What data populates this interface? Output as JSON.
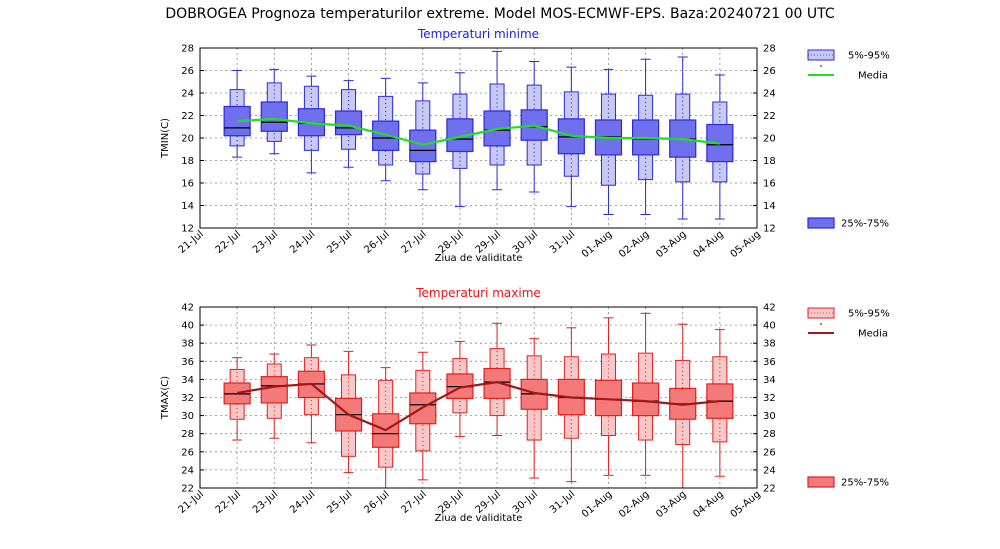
{
  "title": "DOBROGEA  Prognoza temperaturilor extreme.  Model MOS-ECMWF-EPS. Baza:20240721 00 UTC",
  "chart_data": [
    {
      "type": "box",
      "title": "Temperaturi minime",
      "title_color": "#1a1aff",
      "ylabel": "TMIN(C)",
      "xlabel": "Ziua de validitate",
      "ylim": [
        12,
        28
      ],
      "yticks": [
        12,
        14,
        16,
        18,
        20,
        22,
        24,
        26,
        28
      ],
      "x_ticks": [
        "21-Jul",
        "22-Jul",
        "23-Jul",
        "24-Jul",
        "25-Jul",
        "26-Jul",
        "27-Jul",
        "28-Jul",
        "29-Jul",
        "30-Jul",
        "31-Jul",
        "01-Aug",
        "02-Aug",
        "03-Aug",
        "04-Aug",
        "05-Aug"
      ],
      "grid": true,
      "colors": {
        "outer_fill": "#c8c8f4",
        "inner_fill": "#7070ee",
        "stroke": "#2a2ad8",
        "mean_line": "#22dd22"
      },
      "legend": {
        "outer_label": "5%-95%",
        "mean_label": "Media",
        "inner_label": "25%-75%"
      },
      "boxes": [
        {
          "day": "22-Jul",
          "p5": 19.3,
          "p25": 20.2,
          "median": 20.9,
          "p75": 22.8,
          "p95": 24.3,
          "min": 18.3,
          "max": 26.0,
          "mean": 21.5
        },
        {
          "day": "23-Jul",
          "p5": 19.7,
          "p25": 20.6,
          "median": 21.4,
          "p75": 23.2,
          "p95": 24.9,
          "min": 18.6,
          "max": 26.1,
          "mean": 21.7
        },
        {
          "day": "24-Jul",
          "p5": 18.9,
          "p25": 20.2,
          "median": 21.3,
          "p75": 22.6,
          "p95": 24.6,
          "min": 16.9,
          "max": 25.5,
          "mean": 21.3
        },
        {
          "day": "25-Jul",
          "p5": 19.0,
          "p25": 20.3,
          "median": 20.9,
          "p75": 22.4,
          "p95": 24.3,
          "min": 17.4,
          "max": 25.1,
          "mean": 21.1
        },
        {
          "day": "26-Jul",
          "p5": 17.6,
          "p25": 18.9,
          "median": 20.0,
          "p75": 21.5,
          "p95": 23.7,
          "min": 16.2,
          "max": 25.3,
          "mean": 20.3
        },
        {
          "day": "27-Jul",
          "p5": 16.8,
          "p25": 17.9,
          "median": 18.9,
          "p75": 20.7,
          "p95": 23.3,
          "min": 15.4,
          "max": 24.9,
          "mean": 19.4
        },
        {
          "day": "28-Jul",
          "p5": 17.3,
          "p25": 18.8,
          "median": 19.9,
          "p75": 21.7,
          "p95": 23.9,
          "min": 13.9,
          "max": 25.8,
          "mean": 20.1
        },
        {
          "day": "29-Jul",
          "p5": 17.6,
          "p25": 19.3,
          "median": 20.7,
          "p75": 22.4,
          "p95": 24.8,
          "min": 15.4,
          "max": 27.7,
          "mean": 20.8
        },
        {
          "day": "30-Jul",
          "p5": 17.6,
          "p25": 19.8,
          "median": 21.0,
          "p75": 22.5,
          "p95": 24.7,
          "min": 15.2,
          "max": 26.8,
          "mean": 21.1
        },
        {
          "day": "31-Jul",
          "p5": 16.6,
          "p25": 18.6,
          "median": 20.1,
          "p75": 21.7,
          "p95": 24.1,
          "min": 13.9,
          "max": 26.3,
          "mean": 20.2
        },
        {
          "day": "01-Aug",
          "p5": 15.8,
          "p25": 18.5,
          "median": 20.1,
          "p75": 21.6,
          "p95": 23.9,
          "min": 13.2,
          "max": 26.1,
          "mean": 20.0
        },
        {
          "day": "02-Aug",
          "p5": 16.3,
          "p25": 18.5,
          "median": 19.9,
          "p75": 21.6,
          "p95": 23.8,
          "min": 13.2,
          "max": 27.0,
          "mean": 20.0
        },
        {
          "day": "03-Aug",
          "p5": 16.1,
          "p25": 18.3,
          "median": 19.9,
          "p75": 21.6,
          "p95": 23.9,
          "min": 12.8,
          "max": 27.2,
          "mean": 19.9
        },
        {
          "day": "04-Aug",
          "p5": 16.1,
          "p25": 17.9,
          "median": 19.4,
          "p75": 21.2,
          "p95": 23.2,
          "min": 12.8,
          "max": 25.6,
          "mean": 19.5
        }
      ]
    },
    {
      "type": "box",
      "title": "Temperaturi maxime",
      "title_color": "#ee1111",
      "ylabel": "TMAX(C)",
      "xlabel": "Ziua de validitate",
      "ylim": [
        22,
        42
      ],
      "yticks": [
        22,
        24,
        26,
        28,
        30,
        32,
        34,
        36,
        38,
        40,
        42
      ],
      "x_ticks": [
        "21-Jul",
        "22-Jul",
        "23-Jul",
        "24-Jul",
        "25-Jul",
        "26-Jul",
        "27-Jul",
        "28-Jul",
        "29-Jul",
        "30-Jul",
        "31-Jul",
        "01-Aug",
        "02-Aug",
        "03-Aug",
        "04-Aug",
        "05-Aug"
      ],
      "grid": true,
      "colors": {
        "outer_fill": "#f8c8c8",
        "inner_fill": "#f47a7a",
        "stroke": "#e02020",
        "mean_line": "#a01818"
      },
      "legend": {
        "outer_label": "5%-95%",
        "mean_label": "Media",
        "inner_label": "25%-75%"
      },
      "boxes": [
        {
          "day": "22-Jul",
          "p5": 29.6,
          "p25": 31.3,
          "median": 32.4,
          "p75": 33.6,
          "p95": 35.1,
          "min": 27.3,
          "max": 36.4,
          "mean": 32.5
        },
        {
          "day": "23-Jul",
          "p5": 29.7,
          "p25": 31.4,
          "median": 33.3,
          "p75": 34.3,
          "p95": 35.7,
          "min": 27.5,
          "max": 36.8,
          "mean": 33.2
        },
        {
          "day": "24-Jul",
          "p5": 30.1,
          "p25": 32.0,
          "median": 33.5,
          "p75": 34.9,
          "p95": 36.4,
          "min": 27.0,
          "max": 37.8,
          "mean": 33.5
        },
        {
          "day": "25-Jul",
          "p5": 25.5,
          "p25": 28.3,
          "median": 30.1,
          "p75": 31.9,
          "p95": 34.5,
          "min": 23.7,
          "max": 37.1,
          "mean": 30.1
        },
        {
          "day": "26-Jul",
          "p5": 24.3,
          "p25": 26.5,
          "median": 28.0,
          "p75": 30.2,
          "p95": 33.9,
          "min": 22.0,
          "max": 35.3,
          "mean": 28.4
        },
        {
          "day": "27-Jul",
          "p5": 26.1,
          "p25": 29.1,
          "median": 31.2,
          "p75": 32.5,
          "p95": 35.0,
          "min": 22.9,
          "max": 37.0,
          "mean": 30.9
        },
        {
          "day": "28-Jul",
          "p5": 30.3,
          "p25": 31.9,
          "median": 33.2,
          "p75": 34.6,
          "p95": 36.3,
          "min": 27.7,
          "max": 38.2,
          "mean": 33.1
        },
        {
          "day": "29-Jul",
          "p5": 30.0,
          "p25": 31.9,
          "median": 33.7,
          "p75": 35.2,
          "p95": 37.4,
          "min": 27.8,
          "max": 40.2,
          "mean": 33.7
        },
        {
          "day": "30-Jul",
          "p5": 27.3,
          "p25": 30.7,
          "median": 32.4,
          "p75": 34.0,
          "p95": 36.6,
          "min": 23.1,
          "max": 38.5,
          "mean": 32.5
        },
        {
          "day": "31-Jul",
          "p5": 27.5,
          "p25": 30.1,
          "median": 32.0,
          "p75": 34.0,
          "p95": 36.5,
          "min": 22.7,
          "max": 39.7,
          "mean": 32.0
        },
        {
          "day": "01-Aug",
          "p5": 27.8,
          "p25": 30.0,
          "median": 31.8,
          "p75": 33.9,
          "p95": 36.8,
          "min": 23.4,
          "max": 40.8,
          "mean": 31.8
        },
        {
          "day": "02-Aug",
          "p5": 27.3,
          "p25": 30.0,
          "median": 31.6,
          "p75": 33.6,
          "p95": 36.9,
          "min": 23.4,
          "max": 41.3,
          "mean": 31.6
        },
        {
          "day": "03-Aug",
          "p5": 26.8,
          "p25": 29.6,
          "median": 31.3,
          "p75": 33.0,
          "p95": 36.1,
          "min": 22.0,
          "max": 40.1,
          "mean": 31.2
        },
        {
          "day": "04-Aug",
          "p5": 27.1,
          "p25": 29.7,
          "median": 31.6,
          "p75": 33.5,
          "p95": 36.5,
          "min": 23.3,
          "max": 39.5,
          "mean": 31.6
        }
      ]
    }
  ]
}
